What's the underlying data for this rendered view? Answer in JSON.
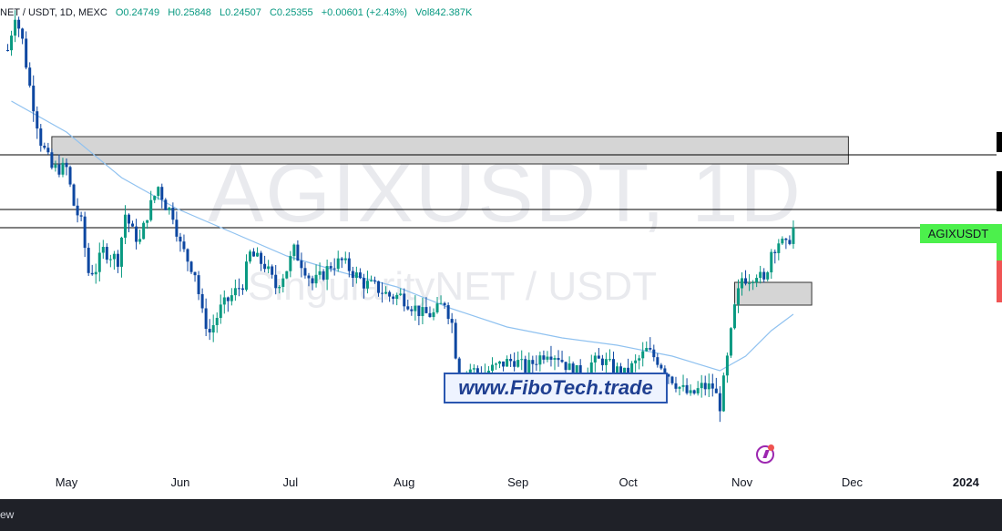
{
  "legend": {
    "symbol": "NET / USDT, 1D, MEXC",
    "open": "O0.24749",
    "high": "H0.25848",
    "low": "L0.24507",
    "close": "C0.25355",
    "change": "+0.00601 (+2.43%)",
    "volume": "Vol842.387K"
  },
  "watermark": {
    "main": "AGIXUSDT, 1D",
    "sub": "SingularityNET / USDT"
  },
  "website_label": "www.FiboTech.trade",
  "symbol_tag": "AGIXUSDT",
  "bottom_bar_text": "ew",
  "colors": {
    "up": "#089981",
    "down": "#0d47a1",
    "ma": "#90c2f0",
    "zone_fill": "#d5d5d5",
    "zone_border": "#333333",
    "tag_green": "#4cf04c",
    "tag_red": "#f05454"
  },
  "chart_data": {
    "type": "candlestick",
    "title": "",
    "x_ticks": [
      {
        "label": "May",
        "day": 0
      },
      {
        "label": "Jun",
        "day": 31
      },
      {
        "label": "Jul",
        "day": 61
      },
      {
        "label": "Aug",
        "day": 92
      },
      {
        "label": "Sep",
        "day": 123
      },
      {
        "label": "Oct",
        "day": 153
      },
      {
        "label": "Nov",
        "day": 184
      },
      {
        "label": "Dec",
        "day": 214
      },
      {
        "label": "2024",
        "day": 245,
        "bold": true
      }
    ],
    "y_range": [
      0.1475,
      0.4175
    ],
    "key_points": [
      [
        -16,
        0.39
      ],
      [
        -14,
        0.41
      ],
      [
        -12,
        0.395
      ],
      [
        -10,
        0.37
      ],
      [
        -7,
        0.34
      ],
      [
        -4,
        0.325
      ],
      [
        0,
        0.325
      ],
      [
        2,
        0.305
      ],
      [
        4,
        0.295
      ],
      [
        6,
        0.268
      ],
      [
        8,
        0.27
      ],
      [
        10,
        0.28
      ],
      [
        14,
        0.275
      ],
      [
        16,
        0.3
      ],
      [
        18,
        0.29
      ],
      [
        20,
        0.285
      ],
      [
        22,
        0.3
      ],
      [
        25,
        0.315
      ],
      [
        27,
        0.305
      ],
      [
        29,
        0.3
      ],
      [
        31,
        0.283
      ],
      [
        33,
        0.275
      ],
      [
        35,
        0.268
      ],
      [
        37,
        0.245
      ],
      [
        39,
        0.235
      ],
      [
        42,
        0.248
      ],
      [
        45,
        0.255
      ],
      [
        48,
        0.262
      ],
      [
        50,
        0.278
      ],
      [
        54,
        0.272
      ],
      [
        57,
        0.26
      ],
      [
        60,
        0.27
      ],
      [
        62,
        0.28
      ],
      [
        65,
        0.27
      ],
      [
        67,
        0.262
      ],
      [
        69,
        0.265
      ],
      [
        72,
        0.272
      ],
      [
        75,
        0.274
      ],
      [
        78,
        0.268
      ],
      [
        81,
        0.262
      ],
      [
        84,
        0.26
      ],
      [
        88,
        0.255
      ],
      [
        91,
        0.255
      ],
      [
        94,
        0.25
      ],
      [
        97,
        0.245
      ],
      [
        100,
        0.245
      ],
      [
        103,
        0.252
      ],
      [
        105,
        0.24
      ],
      [
        107,
        0.208
      ],
      [
        110,
        0.215
      ],
      [
        113,
        0.212
      ],
      [
        116,
        0.215
      ],
      [
        119,
        0.218
      ],
      [
        122,
        0.22
      ],
      [
        125,
        0.215
      ],
      [
        128,
        0.22
      ],
      [
        131,
        0.225
      ],
      [
        134,
        0.222
      ],
      [
        137,
        0.215
      ],
      [
        140,
        0.212
      ],
      [
        143,
        0.218
      ],
      [
        146,
        0.22
      ],
      [
        149,
        0.215
      ],
      [
        152,
        0.212
      ],
      [
        155,
        0.218
      ],
      [
        158,
        0.225
      ],
      [
        161,
        0.22
      ],
      [
        164,
        0.212
      ],
      [
        167,
        0.205
      ],
      [
        170,
        0.2
      ],
      [
        173,
        0.205
      ],
      [
        176,
        0.205
      ],
      [
        178,
        0.195
      ],
      [
        180,
        0.22
      ],
      [
        182,
        0.248
      ],
      [
        184,
        0.265
      ],
      [
        186,
        0.265
      ],
      [
        188,
        0.268
      ],
      [
        190,
        0.262
      ],
      [
        192,
        0.28
      ],
      [
        194,
        0.285
      ],
      [
        196,
        0.282
      ],
      [
        198,
        0.292
      ]
    ],
    "ma_line": [
      [
        -15,
        0.362
      ],
      [
        0,
        0.345
      ],
      [
        15,
        0.32
      ],
      [
        30,
        0.303
      ],
      [
        45,
        0.29
      ],
      [
        60,
        0.277
      ],
      [
        75,
        0.268
      ],
      [
        90,
        0.26
      ],
      [
        105,
        0.248
      ],
      [
        120,
        0.238
      ],
      [
        135,
        0.232
      ],
      [
        150,
        0.228
      ],
      [
        165,
        0.222
      ],
      [
        178,
        0.214
      ],
      [
        185,
        0.222
      ],
      [
        192,
        0.236
      ],
      [
        198,
        0.245
      ]
    ],
    "zones": [
      {
        "name": "resistance-zone-upper",
        "x1": -4,
        "x2": 213,
        "y_low": 0.3275,
        "y_high": 0.3425
      },
      {
        "name": "support-zone-current",
        "x1": 182,
        "x2": 203,
        "y_low": 0.25,
        "y_high": 0.2625
      }
    ],
    "hlines": [
      0.3325,
      0.3025,
      0.2925
    ]
  }
}
